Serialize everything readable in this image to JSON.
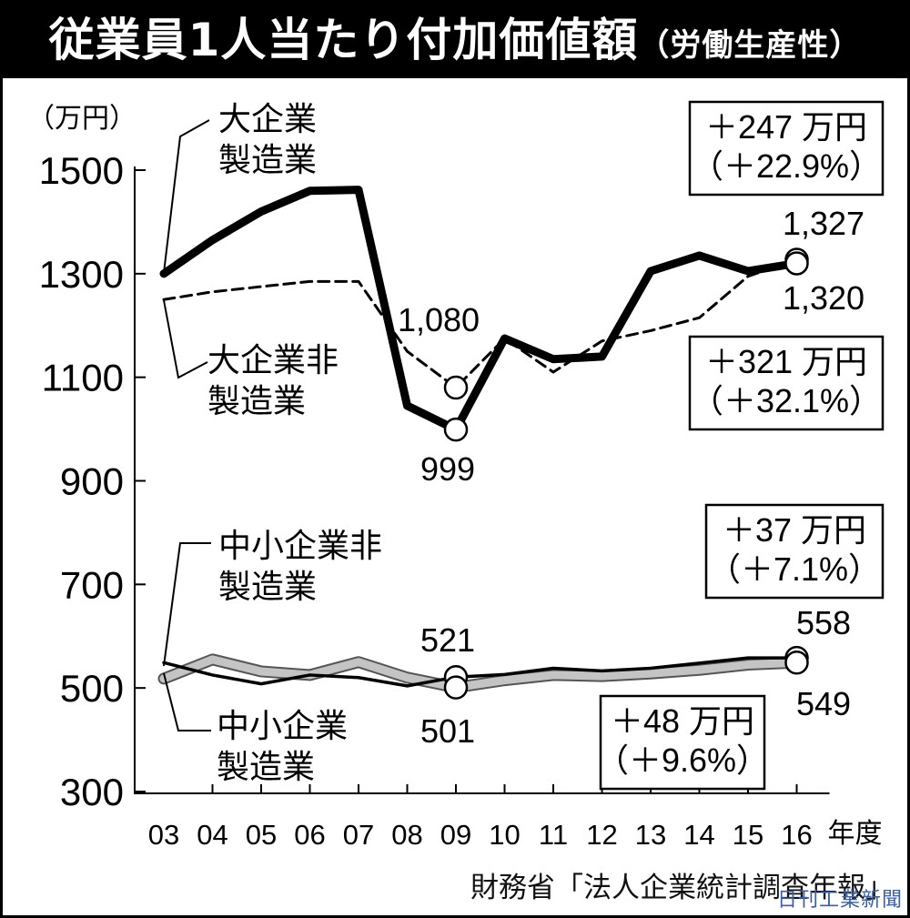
{
  "title": "従業員1人当たり付加価値額",
  "title_sub": "（労働生産性）",
  "source": "財務省「法人企業統計調査年報」",
  "credit": "日刊工業新聞",
  "colors": {
    "black": "#000000",
    "gray_band": "#b5b5b5",
    "gray_edge": "#555555",
    "dashed": "#000000"
  },
  "chart_data": {
    "type": "line",
    "unit_label": "（万円）",
    "x_suffix": "年度",
    "categories": [
      "03",
      "04",
      "05",
      "06",
      "07",
      "08",
      "09",
      "10",
      "11",
      "12",
      "13",
      "14",
      "15",
      "16"
    ],
    "yticks": [
      300,
      500,
      700,
      900,
      1100,
      1300,
      1500
    ],
    "ylim": [
      300,
      1500
    ],
    "grid": false,
    "series": [
      {
        "name": "大企業製造業",
        "style": "thick-solid",
        "values": [
          1300,
          1365,
          1420,
          1460,
          1462,
          1045,
          999,
          1175,
          1135,
          1140,
          1305,
          1335,
          1305,
          1320
        ]
      },
      {
        "name": "大企業非製造業",
        "style": "dashed",
        "values": [
          1250,
          1265,
          1275,
          1285,
          1285,
          1150,
          1080,
          1175,
          1110,
          1170,
          1190,
          1215,
          1295,
          1327
        ]
      },
      {
        "name": "中小企業非製造業",
        "style": "thin-solid",
        "values": [
          549,
          525,
          508,
          525,
          520,
          504,
          521,
          526,
          538,
          533,
          538,
          548,
          558,
          558
        ]
      },
      {
        "name": "中小企業製造業",
        "style": "gray-band",
        "values": [
          518,
          555,
          532,
          525,
          550,
          520,
          501,
          515,
          525,
          523,
          528,
          535,
          545,
          549
        ]
      }
    ],
    "point_labels": [
      "1,327",
      "1,320",
      "1,080",
      "999",
      "521",
      "501",
      "558",
      "549"
    ],
    "change_boxes": [
      {
        "line1": "＋247 万円",
        "line2": "（＋22.9%）"
      },
      {
        "line1": "＋321 万円",
        "line2": "（＋32.1%）"
      },
      {
        "line1": "＋37 万円",
        "line2": "（＋7.1%）"
      },
      {
        "line1": "＋48 万円",
        "line2": "（＋9.6%）"
      }
    ]
  }
}
